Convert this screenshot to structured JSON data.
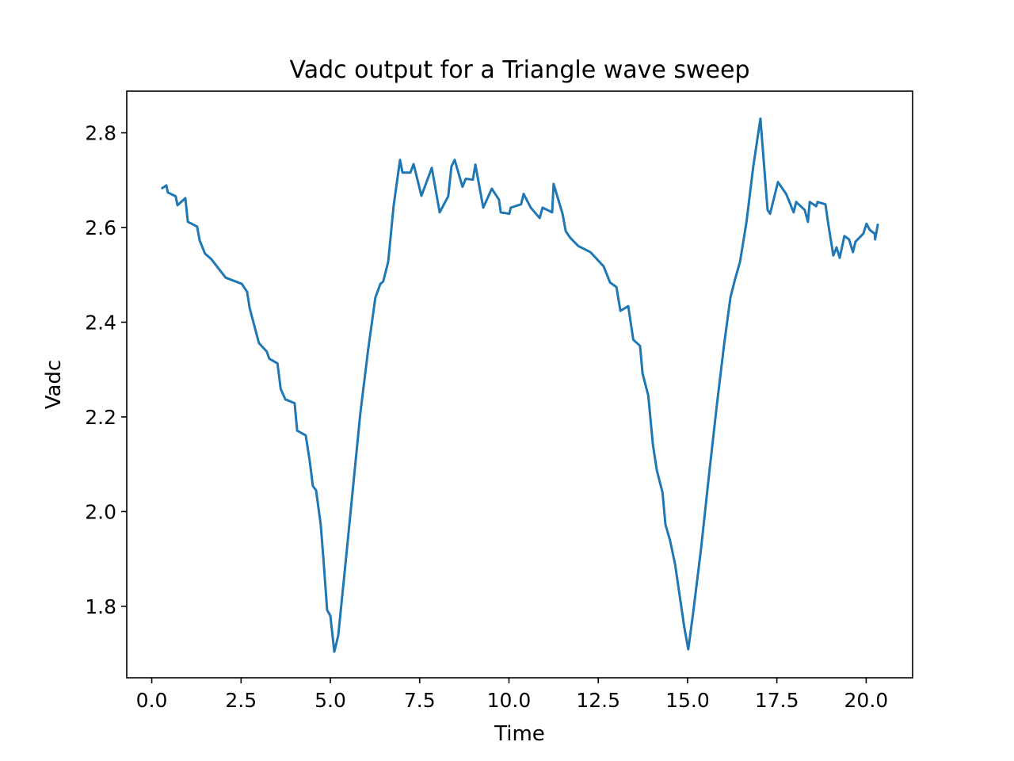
{
  "chart_data": {
    "type": "line",
    "title": "Vadc output for a Triangle wave sweep",
    "x_label": "Time",
    "y_label": "Vadc",
    "color": "#1f77b4",
    "xlim": [
      -0.7,
      21.3
    ],
    "ylim": [
      1.649,
      2.888
    ],
    "xticks": [
      {
        "value": 0,
        "label": "0.0"
      },
      2.5,
      {
        "value": 5,
        "label": "5.0"
      },
      7.5,
      {
        "value": 10,
        "label": "10.0"
      },
      12.5,
      {
        "value": 15,
        "label": "15.0"
      },
      17.5,
      {
        "value": 20,
        "label": "20.0"
      }
    ],
    "yticks": [
      1.8,
      {
        "value": 2,
        "label": "2.0"
      },
      2.2,
      2.4,
      2.6,
      2.8
    ],
    "x": [
      0.27,
      0.41,
      0.45,
      0.67,
      0.72,
      0.94,
      1.01,
      1.27,
      1.34,
      1.49,
      1.67,
      2.07,
      2.52,
      2.67,
      2.74,
      3.0,
      3.22,
      3.29,
      3.52,
      3.61,
      3.74,
      4.0,
      4.07,
      4.31,
      4.42,
      4.51,
      4.6,
      4.73,
      4.8,
      4.91,
      5.0,
      5.11,
      5.22,
      5.4,
      5.62,
      5.84,
      6.06,
      6.26,
      6.4,
      6.48,
      6.62,
      6.77,
      6.95,
      7.02,
      7.24,
      7.33,
      7.55,
      7.84,
      8.06,
      8.3,
      8.39,
      8.48,
      8.7,
      8.79,
      8.99,
      9.06,
      9.28,
      9.52,
      9.72,
      9.77,
      10.01,
      10.05,
      10.34,
      10.41,
      10.61,
      10.86,
      10.94,
      11.21,
      11.25,
      11.5,
      11.59,
      11.72,
      11.94,
      12.28,
      12.65,
      12.83,
      13.01,
      13.12,
      13.34,
      13.48,
      13.67,
      13.74,
      13.9,
      14.03,
      14.14,
      14.3,
      14.38,
      14.51,
      14.65,
      14.78,
      14.91,
      15.02,
      15.16,
      15.38,
      15.6,
      15.82,
      16.02,
      16.2,
      16.33,
      16.47,
      16.65,
      16.84,
      17.04,
      17.24,
      17.31,
      17.53,
      17.76,
      17.97,
      18.04,
      18.28,
      18.37,
      18.42,
      18.6,
      18.64,
      18.86,
      18.93,
      19.08,
      19.17,
      19.26,
      19.39,
      19.52,
      19.63,
      19.7,
      19.92,
      20.01,
      20.1,
      20.24,
      20.25,
      20.33
    ],
    "values": [
      2.682,
      2.689,
      2.674,
      2.666,
      2.647,
      2.662,
      2.612,
      2.602,
      2.573,
      2.545,
      2.533,
      2.494,
      2.481,
      2.464,
      2.43,
      2.356,
      2.338,
      2.323,
      2.313,
      2.259,
      2.237,
      2.229,
      2.171,
      2.161,
      2.108,
      2.054,
      2.045,
      1.973,
      1.906,
      1.792,
      1.78,
      1.704,
      1.738,
      1.872,
      2.04,
      2.208,
      2.343,
      2.452,
      2.481,
      2.486,
      2.528,
      2.645,
      2.743,
      2.716,
      2.716,
      2.734,
      2.667,
      2.726,
      2.632,
      2.666,
      2.729,
      2.743,
      2.686,
      2.703,
      2.701,
      2.733,
      2.642,
      2.682,
      2.659,
      2.632,
      2.629,
      2.642,
      2.649,
      2.671,
      2.642,
      2.62,
      2.642,
      2.632,
      2.692,
      2.629,
      2.592,
      2.578,
      2.561,
      2.548,
      2.518,
      2.484,
      2.474,
      2.424,
      2.434,
      2.363,
      2.35,
      2.292,
      2.245,
      2.141,
      2.087,
      2.04,
      1.973,
      1.939,
      1.889,
      1.822,
      1.755,
      1.709,
      1.788,
      1.923,
      2.077,
      2.225,
      2.351,
      2.452,
      2.491,
      2.528,
      2.612,
      2.729,
      2.83,
      2.637,
      2.629,
      2.696,
      2.671,
      2.632,
      2.654,
      2.637,
      2.612,
      2.654,
      2.645,
      2.654,
      2.649,
      2.612,
      2.541,
      2.558,
      2.536,
      2.582,
      2.575,
      2.548,
      2.57,
      2.587,
      2.608,
      2.595,
      2.587,
      2.575,
      2.608
    ]
  }
}
